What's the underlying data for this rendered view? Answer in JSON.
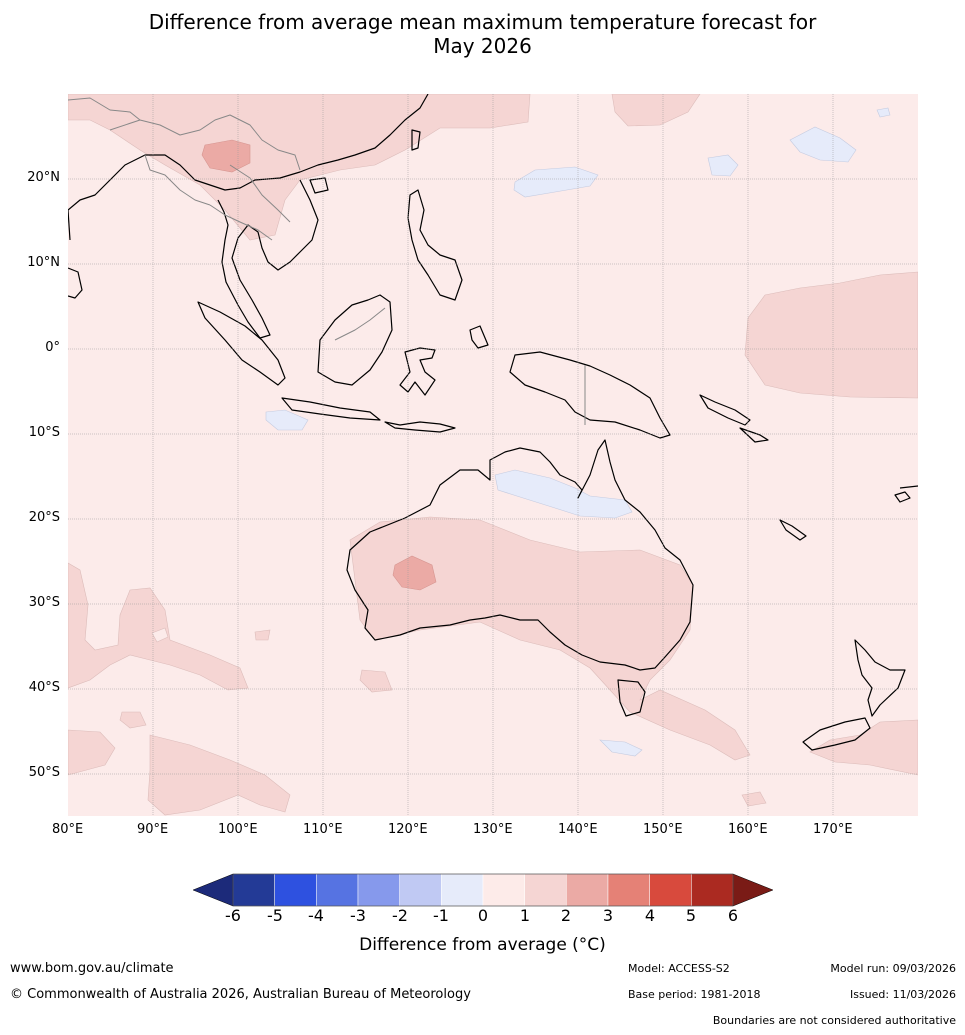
{
  "title": {
    "line1": "Difference from average mean maximum temperature forecast for",
    "line2": "May 2026"
  },
  "map": {
    "lat_labels": [
      "20°N",
      "10°N",
      "0°",
      "10°S",
      "20°S",
      "30°S",
      "40°S",
      "50°S"
    ],
    "lon_labels": [
      "80°E",
      "90°E",
      "100°E",
      "110°E",
      "120°E",
      "130°E",
      "140°E",
      "150°E",
      "160°E",
      "170°E"
    ],
    "colors": {
      "ocean_base": "#fcebea",
      "anomaly_1_2": "#f5d5d3",
      "anomaly_2_3": "#ebaaa5",
      "anomaly_neg": "#e6ebfa",
      "coast": "#000000",
      "border": "#888888",
      "grid": "#999999"
    }
  },
  "colorbar": {
    "ticks": [
      "-6",
      "-5",
      "-4",
      "-3",
      "-2",
      "-1",
      "0",
      "1",
      "2",
      "3",
      "4",
      "5",
      "6"
    ],
    "colors": [
      "#233a96",
      "#2e51e0",
      "#5673e2",
      "#8699ec",
      "#c0c9f3",
      "#e6ebfa",
      "#fdebe9",
      "#f5d5d3",
      "#ebaaa5",
      "#e58176",
      "#d84a3d",
      "#ab2a21"
    ],
    "below_color": "#1c2a7a",
    "above_color": "#7a1b16",
    "label": "Difference from average (°C)"
  },
  "footer": {
    "website": "www.bom.gov.au/climate",
    "copyright": "© Commonwealth of Australia 2026, Australian Bureau of Meteorology",
    "model": "Model: ACCESS-S2",
    "model_run": "Model run: 09/03/2026",
    "base_period": "Base period: 1981-2018",
    "issued": "Issued: 11/03/2026",
    "disclaimer": "Boundaries are not considered authoritative"
  }
}
